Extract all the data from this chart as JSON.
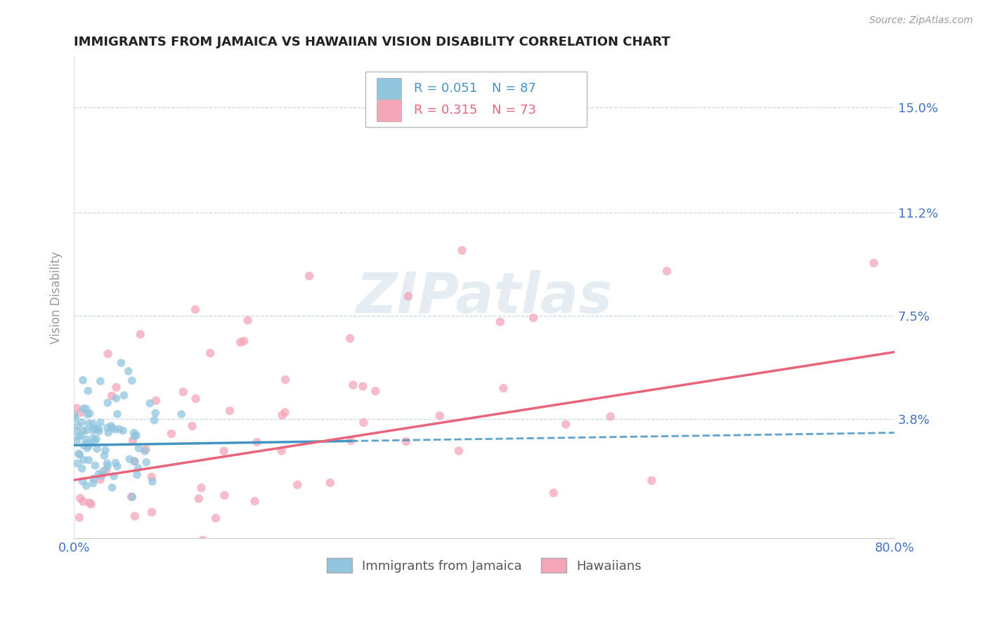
{
  "title": "IMMIGRANTS FROM JAMAICA VS HAWAIIAN VISION DISABILITY CORRELATION CHART",
  "source": "Source: ZipAtlas.com",
  "ylabel": "Vision Disability",
  "xlim": [
    0.0,
    0.8
  ],
  "ylim": [
    -0.005,
    0.168
  ],
  "yticks": [
    0.038,
    0.075,
    0.112,
    0.15
  ],
  "ytick_labels": [
    "3.8%",
    "7.5%",
    "11.2%",
    "15.0%"
  ],
  "xticks": [
    0.0,
    0.2,
    0.4,
    0.6,
    0.8
  ],
  "xtick_labels": [
    "0.0%",
    "",
    "",
    "",
    "80.0%"
  ],
  "legend_r1": "R = 0.051",
  "legend_n1": "N = 87",
  "legend_r2": "R = 0.315",
  "legend_n2": "N = 73",
  "blue_color": "#92c5de",
  "pink_color": "#f4a6b8",
  "blue_line_color": "#4393c3",
  "pink_line_color": "#e8647a",
  "watermark": "ZIPatlas",
  "background_color": "#ffffff",
  "grid_color": "#c8d8ea",
  "title_color": "#222222",
  "axis_label_color": "#4472c4",
  "seed": 42,
  "n_blue": 87,
  "n_pink": 73,
  "blue_trend_x0": 0.0,
  "blue_trend_y0": 0.0285,
  "blue_trend_x1": 0.8,
  "blue_trend_y1": 0.033,
  "pink_trend_x0": 0.0,
  "pink_trend_y0": 0.016,
  "pink_trend_x1": 0.8,
  "pink_trend_y1": 0.062
}
